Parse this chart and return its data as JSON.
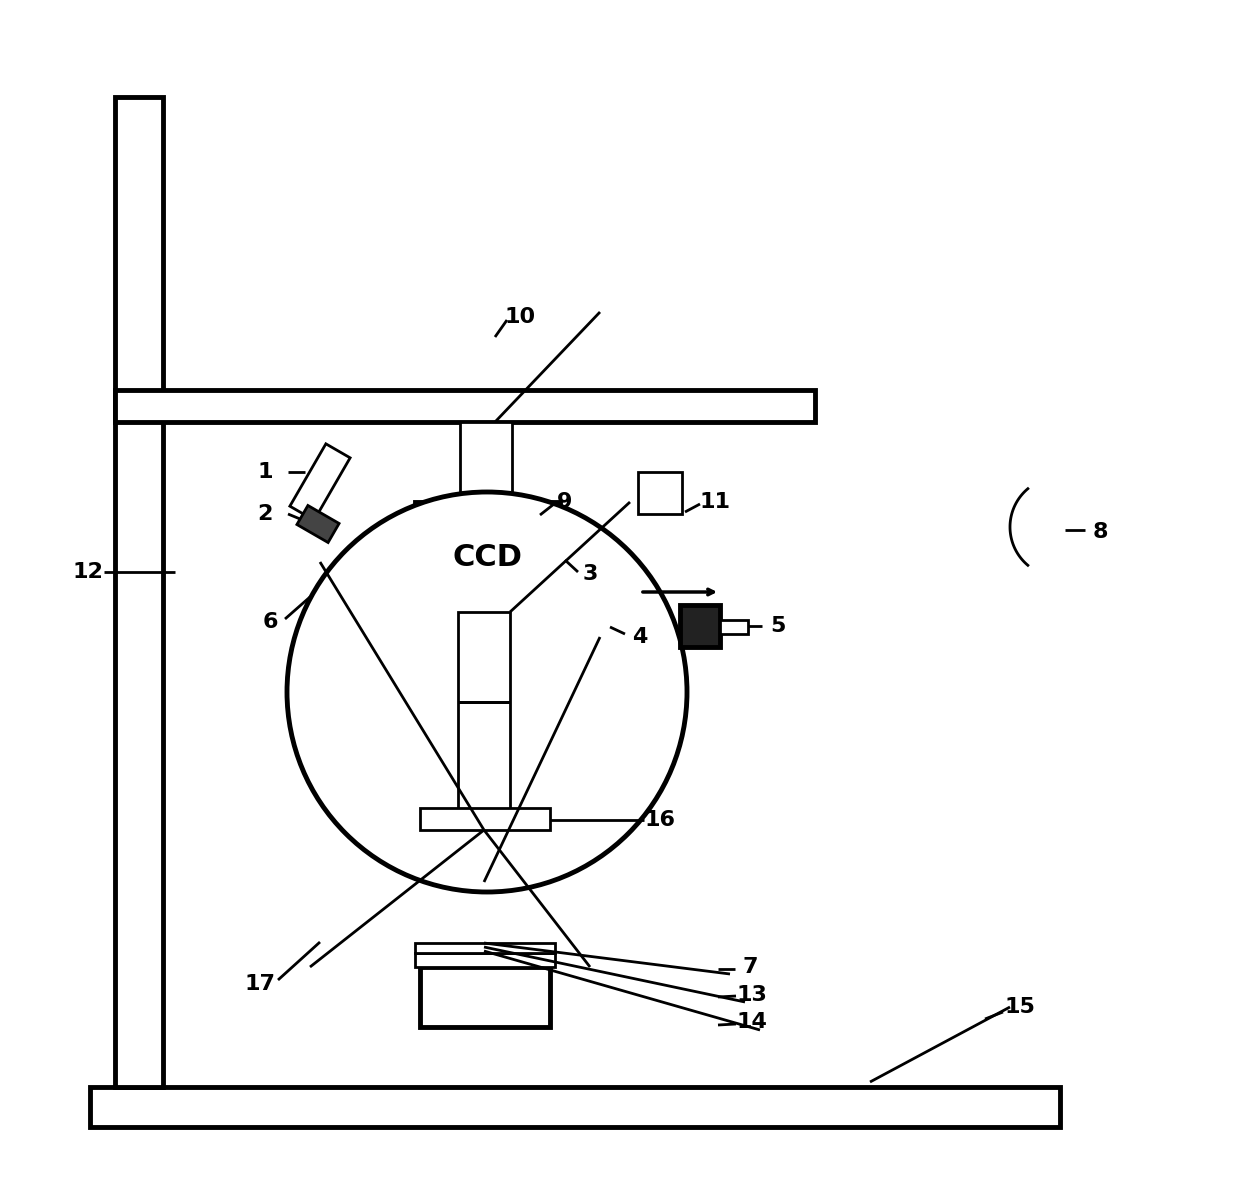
{
  "background_color": "#ffffff",
  "line_color": "#000000",
  "lw": 2.0,
  "tlw": 3.5,
  "fig_width": 12.4,
  "fig_height": 11.82
}
